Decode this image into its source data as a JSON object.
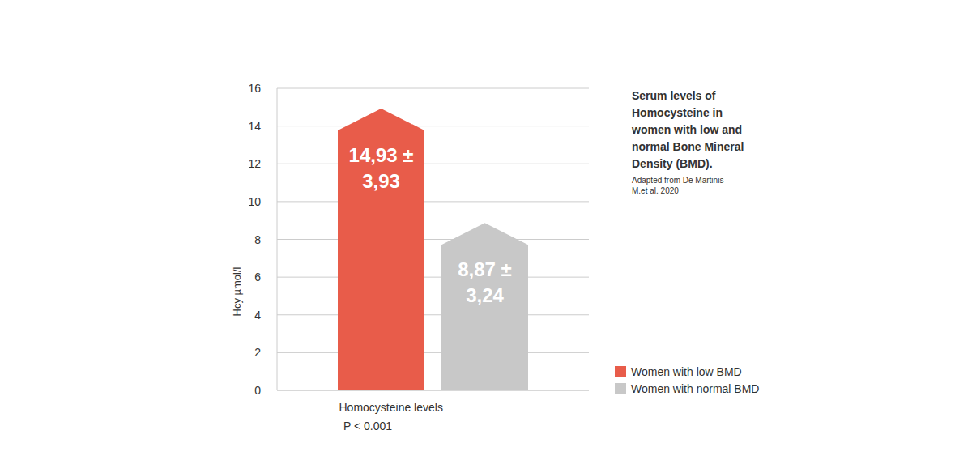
{
  "chart_data": {
    "type": "bar",
    "title": "Serum levels of Homocysteine in women with low and normal Bone Mineral Density (BMD).",
    "source": "Adapted from De Martinis M.et al. 2020",
    "y_label": "Hcy µmol/l",
    "annotations": [
      "P < 0.001"
    ],
    "categories": [
      "Homocysteine levels"
    ],
    "series": [
      {
        "name": "Women with low BMD",
        "color": "#e85c4a",
        "values": [
          14.93
        ],
        "value_labels": [
          "14,93 ± 3,93"
        ]
      },
      {
        "name": "Women with normal BMD",
        "color": "#c8c8c8",
        "values": [
          8.87
        ],
        "value_labels": [
          "8,87 ± 3,24"
        ]
      }
    ],
    "ylim": [
      0,
      16
    ],
    "yticks": [
      0,
      2,
      4,
      6,
      8,
      10,
      12,
      14,
      16
    ],
    "grid": true,
    "data_labels": true,
    "legend": "lower right"
  }
}
